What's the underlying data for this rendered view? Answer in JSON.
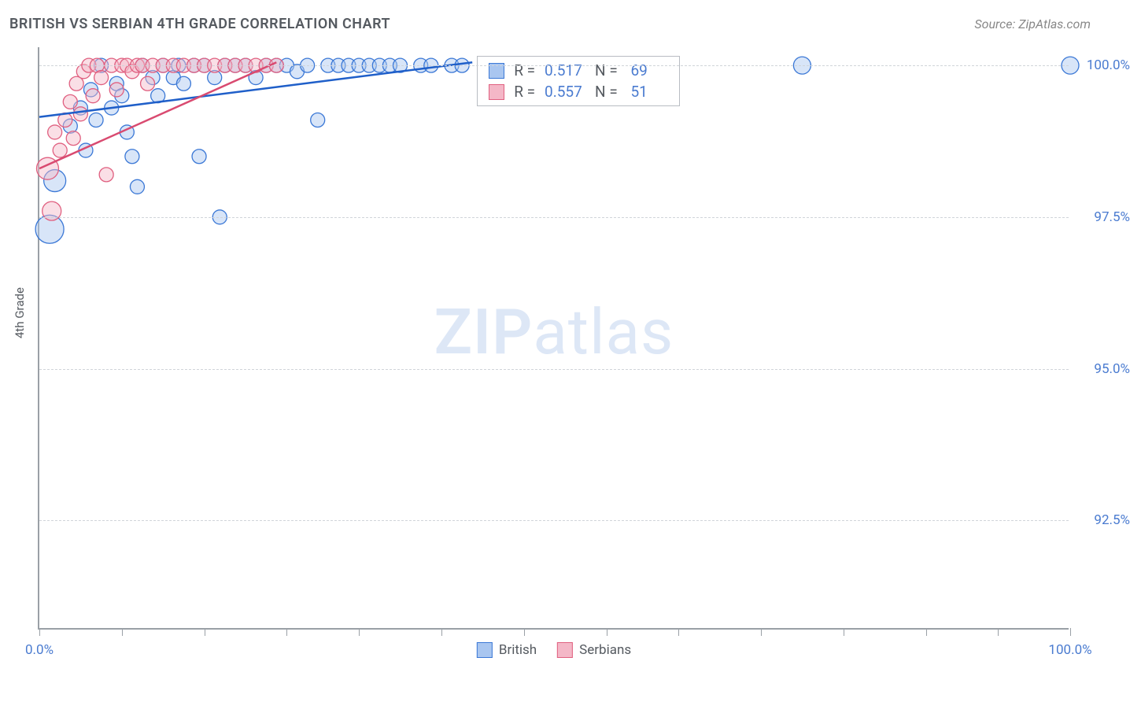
{
  "title": "BRITISH VS SERBIAN 4TH GRADE CORRELATION CHART",
  "source": "Source: ZipAtlas.com",
  "y_axis_label": "4th Grade",
  "watermark": {
    "bold": "ZIP",
    "light": "atlas"
  },
  "chart": {
    "type": "scatter",
    "xlim": [
      0,
      100
    ],
    "ylim": [
      90.7,
      100.3
    ],
    "x_ticks": [
      0,
      8,
      16,
      24,
      31,
      39,
      47,
      55,
      62,
      70,
      78,
      86,
      93,
      100
    ],
    "x_tick_labels": {
      "0": "0.0%",
      "100": "100.0%"
    },
    "y_gridlines": [
      92.5,
      95.0,
      97.5,
      100.0
    ],
    "y_tick_labels": {
      "92.5": "92.5%",
      "95.0": "95.0%",
      "97.5": "97.5%",
      "100.0": "100.0%"
    },
    "grid_color": "#d0d4d9",
    "axis_color": "#9aa0a6",
    "background_color": "#ffffff",
    "series": [
      {
        "name": "British",
        "fill": "#a9c6f0",
        "stroke": "#3b78d6",
        "fill_opacity": 0.45,
        "points": [
          {
            "x": 1,
            "y": 97.3,
            "r": 18
          },
          {
            "x": 1.5,
            "y": 98.1,
            "r": 14
          },
          {
            "x": 3,
            "y": 99.0,
            "r": 9
          },
          {
            "x": 4,
            "y": 99.3,
            "r": 9
          },
          {
            "x": 4.5,
            "y": 98.6,
            "r": 9
          },
          {
            "x": 5,
            "y": 99.6,
            "r": 9
          },
          {
            "x": 5.5,
            "y": 99.1,
            "r": 9
          },
          {
            "x": 6,
            "y": 100.0,
            "r": 9
          },
          {
            "x": 7,
            "y": 99.3,
            "r": 9
          },
          {
            "x": 7.5,
            "y": 99.7,
            "r": 9
          },
          {
            "x": 8,
            "y": 99.5,
            "r": 9
          },
          {
            "x": 8.5,
            "y": 98.9,
            "r": 9
          },
          {
            "x": 9,
            "y": 98.5,
            "r": 9
          },
          {
            "x": 9.5,
            "y": 98.0,
            "r": 9
          },
          {
            "x": 10,
            "y": 100.0,
            "r": 9
          },
          {
            "x": 11,
            "y": 99.8,
            "r": 9
          },
          {
            "x": 11.5,
            "y": 99.5,
            "r": 9
          },
          {
            "x": 12,
            "y": 100.0,
            "r": 9
          },
          {
            "x": 13,
            "y": 99.8,
            "r": 9
          },
          {
            "x": 13.5,
            "y": 100.0,
            "r": 9
          },
          {
            "x": 14,
            "y": 99.7,
            "r": 9
          },
          {
            "x": 15,
            "y": 100.0,
            "r": 9
          },
          {
            "x": 15.5,
            "y": 98.5,
            "r": 9
          },
          {
            "x": 16,
            "y": 100.0,
            "r": 9
          },
          {
            "x": 17,
            "y": 99.8,
            "r": 9
          },
          {
            "x": 17.5,
            "y": 97.5,
            "r": 9
          },
          {
            "x": 18,
            "y": 100.0,
            "r": 9
          },
          {
            "x": 19,
            "y": 100.0,
            "r": 9
          },
          {
            "x": 20,
            "y": 100.0,
            "r": 9
          },
          {
            "x": 21,
            "y": 99.8,
            "r": 9
          },
          {
            "x": 22,
            "y": 100.0,
            "r": 9
          },
          {
            "x": 23,
            "y": 100.0,
            "r": 9
          },
          {
            "x": 24,
            "y": 100.0,
            "r": 9
          },
          {
            "x": 25,
            "y": 99.9,
            "r": 9
          },
          {
            "x": 26,
            "y": 100.0,
            "r": 9
          },
          {
            "x": 27,
            "y": 99.1,
            "r": 9
          },
          {
            "x": 28,
            "y": 100.0,
            "r": 9
          },
          {
            "x": 29,
            "y": 100.0,
            "r": 9
          },
          {
            "x": 30,
            "y": 100.0,
            "r": 9
          },
          {
            "x": 31,
            "y": 100.0,
            "r": 9
          },
          {
            "x": 32,
            "y": 100.0,
            "r": 9
          },
          {
            "x": 33,
            "y": 100.0,
            "r": 9
          },
          {
            "x": 34,
            "y": 100.0,
            "r": 9
          },
          {
            "x": 35,
            "y": 100.0,
            "r": 9
          },
          {
            "x": 37,
            "y": 100.0,
            "r": 9
          },
          {
            "x": 38,
            "y": 100.0,
            "r": 9
          },
          {
            "x": 40,
            "y": 100.0,
            "r": 9
          },
          {
            "x": 41,
            "y": 100.0,
            "r": 9
          },
          {
            "x": 74,
            "y": 100.0,
            "r": 11
          },
          {
            "x": 100,
            "y": 100.0,
            "r": 11
          }
        ],
        "trend": {
          "x1": 0,
          "y1": 99.15,
          "x2": 42,
          "y2": 100.05,
          "color": "#1f5fc9",
          "width": 2.5
        }
      },
      {
        "name": "Serbians",
        "fill": "#f4b7c7",
        "stroke": "#e06080",
        "fill_opacity": 0.45,
        "points": [
          {
            "x": 0.8,
            "y": 98.3,
            "r": 14
          },
          {
            "x": 1.2,
            "y": 97.6,
            "r": 12
          },
          {
            "x": 1.5,
            "y": 98.9,
            "r": 9
          },
          {
            "x": 2,
            "y": 98.6,
            "r": 9
          },
          {
            "x": 2.5,
            "y": 99.1,
            "r": 9
          },
          {
            "x": 3,
            "y": 99.4,
            "r": 9
          },
          {
            "x": 3.3,
            "y": 98.8,
            "r": 9
          },
          {
            "x": 3.6,
            "y": 99.7,
            "r": 9
          },
          {
            "x": 4,
            "y": 99.2,
            "r": 9
          },
          {
            "x": 4.3,
            "y": 99.9,
            "r": 9
          },
          {
            "x": 4.8,
            "y": 100.0,
            "r": 9
          },
          {
            "x": 5.2,
            "y": 99.5,
            "r": 9
          },
          {
            "x": 5.6,
            "y": 100.0,
            "r": 9
          },
          {
            "x": 6,
            "y": 99.8,
            "r": 9
          },
          {
            "x": 6.5,
            "y": 98.2,
            "r": 9
          },
          {
            "x": 7,
            "y": 100.0,
            "r": 9
          },
          {
            "x": 7.5,
            "y": 99.6,
            "r": 9
          },
          {
            "x": 8,
            "y": 100.0,
            "r": 9
          },
          {
            "x": 8.5,
            "y": 100.0,
            "r": 9
          },
          {
            "x": 9,
            "y": 99.9,
            "r": 9
          },
          {
            "x": 9.5,
            "y": 100.0,
            "r": 9
          },
          {
            "x": 10,
            "y": 100.0,
            "r": 9
          },
          {
            "x": 10.5,
            "y": 99.7,
            "r": 9
          },
          {
            "x": 11,
            "y": 100.0,
            "r": 9
          },
          {
            "x": 12,
            "y": 100.0,
            "r": 9
          },
          {
            "x": 13,
            "y": 100.0,
            "r": 9
          },
          {
            "x": 14,
            "y": 100.0,
            "r": 9
          },
          {
            "x": 15,
            "y": 100.0,
            "r": 9
          },
          {
            "x": 16,
            "y": 100.0,
            "r": 9
          },
          {
            "x": 17,
            "y": 100.0,
            "r": 9
          },
          {
            "x": 18,
            "y": 100.0,
            "r": 9
          },
          {
            "x": 19,
            "y": 100.0,
            "r": 9
          },
          {
            "x": 20,
            "y": 100.0,
            "r": 9
          },
          {
            "x": 21,
            "y": 100.0,
            "r": 9
          },
          {
            "x": 22,
            "y": 100.0,
            "r": 9
          },
          {
            "x": 23,
            "y": 100.0,
            "r": 9
          }
        ],
        "trend": {
          "x1": 0,
          "y1": 98.3,
          "x2": 23,
          "y2": 100.05,
          "color": "#d94a70",
          "width": 2.5
        }
      }
    ]
  },
  "stats_box": {
    "rows": [
      {
        "swatch_fill": "#a9c6f0",
        "swatch_stroke": "#3b78d6",
        "r_label": "R =",
        "r_val": "0.517",
        "n_label": "N =",
        "n_val": "69"
      },
      {
        "swatch_fill": "#f4b7c7",
        "swatch_stroke": "#e06080",
        "r_label": "R =",
        "r_val": "0.557",
        "n_label": "N =",
        "n_val": "51"
      }
    ]
  },
  "bottom_legend": [
    {
      "swatch_fill": "#a9c6f0",
      "swatch_stroke": "#3b78d6",
      "label": "British"
    },
    {
      "swatch_fill": "#f4b7c7",
      "swatch_stroke": "#e06080",
      "label": "Serbians"
    }
  ]
}
